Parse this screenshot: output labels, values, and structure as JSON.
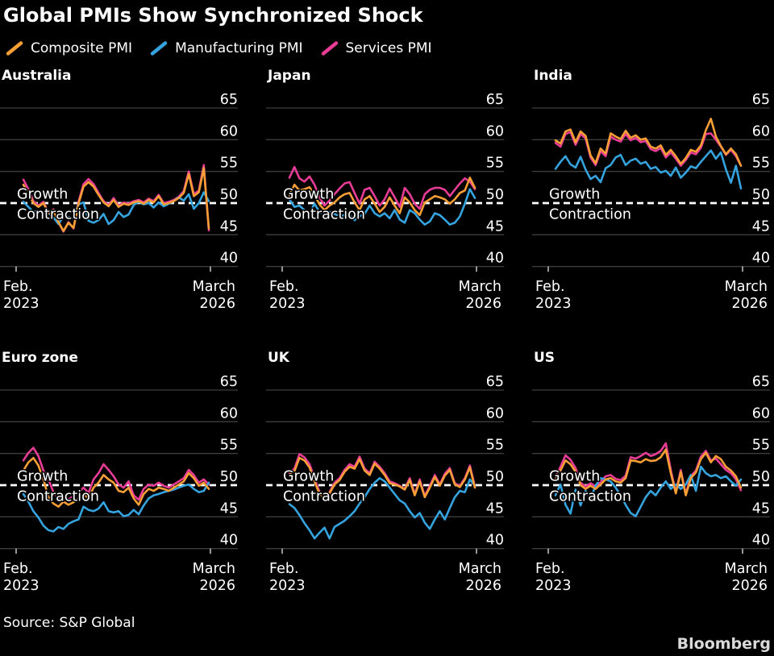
{
  "header": {
    "title": "Global PMIs Show Synchronized Shock"
  },
  "legend": [
    {
      "key": "composite",
      "label": "Composite PMI",
      "color": "#F79E35"
    },
    {
      "key": "manufacturing",
      "label": "Manufacturing PMI",
      "color": "#34A3DE"
    },
    {
      "key": "services",
      "label": "Services PMI",
      "color": "#E83C96"
    }
  ],
  "colors": {
    "background": "#000000",
    "text": "#FFFFFF",
    "gridline": "#3D3D3D",
    "tick": "#C8C8C8",
    "threshold_line": "#FFFFFF",
    "brand": "#DADADA"
  },
  "footer": {
    "source": "Source: S&P Global",
    "brand": "Bloomberg"
  },
  "chart_data": {
    "type": "line",
    "frequency": "monthly",
    "x_start": "Feb. 2023",
    "x_end": "March 2026",
    "x_tick_labels": [
      [
        "Feb.",
        "2023"
      ],
      [
        "March",
        "2026"
      ]
    ],
    "y_ticks": [
      65,
      60,
      55,
      50,
      45,
      40
    ],
    "ylim": [
      40,
      65
    ],
    "grid": true,
    "legend_position": "top-left",
    "threshold": {
      "value": 50,
      "label_above": "Growth",
      "label_below": "Contraction"
    },
    "panels": [
      {
        "title": "Australia",
        "series": {
          "composite": [
            52.9,
            51.6,
            50.0,
            49.4,
            50.0,
            48.4,
            48.9,
            47.0,
            45.6,
            46.9,
            46.1,
            49.9,
            52.6,
            53.3,
            52.6,
            51.3,
            50.1,
            49.5,
            50.5,
            49.4,
            49.9,
            49.7,
            50.1,
            50.3,
            49.9,
            50.5,
            50.1,
            51.1,
            49.8,
            50.0,
            50.3,
            50.8,
            51.6,
            54.6,
            51.1,
            51.7,
            55.5,
            46.0
          ],
          "manufacturing": [
            50.2,
            49.4,
            48.6,
            48.8,
            48.3,
            48.5,
            47.7,
            46.7,
            47.9,
            47.8,
            47.6,
            49.8,
            50.1,
            47.2,
            46.9,
            47.3,
            48.3,
            46.7,
            47.3,
            48.6,
            47.8,
            48.2,
            49.7,
            50.2,
            49.8,
            50.0,
            49.3,
            50.1,
            49.5,
            49.9,
            50.3,
            50.9,
            50.4,
            51.4,
            49.1,
            50.0,
            51.7,
            50.3
          ],
          "services": [
            53.7,
            52.2,
            50.3,
            49.6,
            50.2,
            48.5,
            49.0,
            47.0,
            45.5,
            47.0,
            46.0,
            50.2,
            53.0,
            53.8,
            53.0,
            51.6,
            50.3,
            49.7,
            50.8,
            49.6,
            50.1,
            49.9,
            50.3,
            50.5,
            50.1,
            50.7,
            50.3,
            51.3,
            50.0,
            50.2,
            50.5,
            51.0,
            51.9,
            55.0,
            51.4,
            52.0,
            56.0,
            45.7
          ]
        }
      },
      {
        "title": "Japan",
        "series": {
          "composite": [
            51.2,
            52.9,
            52.0,
            52.2,
            52.5,
            51.3,
            49.8,
            48.9,
            49.6,
            50.1,
            50.9,
            51.4,
            51.6,
            50.1,
            48.9,
            50.6,
            51.1,
            49.9,
            48.6,
            49.4,
            50.9,
            49.6,
            48.4,
            50.9,
            50.1,
            48.9,
            48.1,
            50.1,
            50.6,
            51.1,
            50.9,
            50.6,
            49.9,
            50.6,
            51.6,
            52.0,
            54.0,
            52.4
          ],
          "manufacturing": [
            50.6,
            49.4,
            49.6,
            48.9,
            48.4,
            49.9,
            48.6,
            48.3,
            48.6,
            48.3,
            47.9,
            48.1,
            48.1,
            47.3,
            47.9,
            48.3,
            49.6,
            48.4,
            47.9,
            48.4,
            47.6,
            48.9,
            47.4,
            46.9,
            48.9,
            48.4,
            47.4,
            46.6,
            47.1,
            48.4,
            48.1,
            47.4,
            46.6,
            46.9,
            47.9,
            49.9,
            52.2,
            50.8
          ],
          "services": [
            54.0,
            55.7,
            53.9,
            53.4,
            54.2,
            52.9,
            50.9,
            49.6,
            50.4,
            51.4,
            52.3,
            53.1,
            53.3,
            51.6,
            49.9,
            52.1,
            52.4,
            51.1,
            49.6,
            50.6,
            52.3,
            50.9,
            49.4,
            52.4,
            51.4,
            49.9,
            49.1,
            51.4,
            52.1,
            52.4,
            52.4,
            52.1,
            51.1,
            52.1,
            53.1,
            53.9,
            53.4,
            52.2
          ]
        }
      },
      {
        "title": "India",
        "series": {
          "composite": [
            59.9,
            59.4,
            61.3,
            61.6,
            59.6,
            61.3,
            60.6,
            57.5,
            56.3,
            58.6,
            57.8,
            61.0,
            60.5,
            60.1,
            61.4,
            60.3,
            60.7,
            60.0,
            60.2,
            58.9,
            58.6,
            59.1,
            57.6,
            58.4,
            57.4,
            56.2,
            57.1,
            58.4,
            58.1,
            59.1,
            61.5,
            63.3,
            60.5,
            59.0,
            57.7,
            58.6,
            57.7,
            55.9
          ],
          "manufacturing": [
            55.4,
            56.5,
            57.4,
            56.1,
            55.6,
            57.3,
            55.3,
            53.8,
            54.3,
            53.3,
            55.5,
            56.0,
            57.2,
            57.6,
            56.0,
            56.7,
            57.0,
            56.2,
            56.5,
            55.4,
            55.7,
            54.8,
            55.1,
            54.3,
            55.6,
            54.0,
            54.8,
            55.8,
            55.5,
            56.5,
            57.4,
            58.3,
            57.0,
            58.0,
            55.3,
            53.2,
            55.9,
            52.3
          ],
          "services": [
            59.5,
            58.9,
            60.9,
            61.2,
            59.2,
            60.9,
            60.2,
            57.2,
            56.0,
            58.2,
            57.4,
            60.5,
            60.0,
            59.7,
            60.9,
            59.9,
            60.3,
            59.6,
            59.8,
            58.5,
            58.2,
            58.7,
            57.2,
            58.0,
            57.0,
            55.9,
            56.8,
            58.0,
            57.7,
            58.7,
            60.9,
            61.0,
            60.0,
            58.9,
            57.6,
            58.4,
            57.4,
            55.9
          ]
        }
      },
      {
        "title": "Euro zone",
        "series": {
          "composite": [
            52.3,
            53.6,
            54.3,
            53.1,
            50.9,
            48.1,
            47.1,
            46.6,
            47.4,
            46.9,
            47.3,
            47.9,
            48.6,
            47.9,
            49.6,
            50.4,
            51.6,
            50.9,
            50.4,
            49.1,
            48.9,
            49.6,
            47.9,
            46.9,
            48.6,
            49.4,
            49.1,
            49.6,
            49.4,
            49.1,
            49.6,
            50.1,
            50.6,
            51.9,
            51.1,
            49.9,
            50.4,
            49.4
          ],
          "manufacturing": [
            48.6,
            47.4,
            45.9,
            44.9,
            43.6,
            42.9,
            42.7,
            43.4,
            43.1,
            43.9,
            44.3,
            44.6,
            46.6,
            46.1,
            45.9,
            46.3,
            47.3,
            45.9,
            45.7,
            45.9,
            45.1,
            45.3,
            46.1,
            45.4,
            46.8,
            47.9,
            48.4,
            48.6,
            48.9,
            49.1,
            49.3,
            49.6,
            49.9,
            50.1,
            49.4,
            48.9,
            49.1,
            50.4
          ],
          "services": [
            53.9,
            55.1,
            55.9,
            54.6,
            52.3,
            50.9,
            48.9,
            47.9,
            48.4,
            47.7,
            48.3,
            48.9,
            49.6,
            48.8,
            50.9,
            51.9,
            53.3,
            52.4,
            51.4,
            50.1,
            49.6,
            50.6,
            48.4,
            47.7,
            49.4,
            50.1,
            49.9,
            50.4,
            49.9,
            49.6,
            50.1,
            50.6,
            51.1,
            52.4,
            51.6,
            50.4,
            50.9,
            50.1
          ]
        }
      },
      {
        "title": "UK",
        "series": {
          "composite": [
            51.6,
            52.2,
            54.3,
            53.9,
            52.8,
            50.6,
            48.6,
            48.1,
            48.7,
            50.1,
            50.8,
            52.1,
            52.9,
            52.6,
            54.1,
            52.3,
            51.6,
            53.4,
            52.6,
            51.6,
            50.3,
            50.1,
            49.8,
            49.3,
            50.8,
            48.4,
            50.6,
            48.1,
            49.6,
            51.3,
            49.9,
            51.5,
            52.4,
            50.1,
            49.7,
            50.9,
            52.8,
            49.6
          ],
          "manufacturing": [
            47.0,
            46.4,
            45.3,
            44.0,
            42.9,
            41.6,
            42.5,
            43.3,
            41.6,
            43.4,
            43.9,
            44.4,
            45.1,
            45.9,
            47.1,
            48.1,
            49.4,
            50.4,
            51.1,
            50.6,
            49.6,
            48.6,
            47.6,
            47.1,
            45.9,
            44.9,
            45.6,
            44.1,
            43.1,
            44.6,
            45.9,
            44.6,
            46.4,
            48.1,
            49.1,
            48.9,
            50.9,
            49.9
          ],
          "services": [
            51.9,
            52.6,
            54.9,
            54.4,
            53.3,
            51.1,
            48.9,
            48.4,
            48.9,
            50.4,
            51.1,
            52.4,
            53.3,
            52.9,
            54.5,
            52.6,
            51.9,
            53.7,
            52.9,
            51.9,
            50.6,
            50.3,
            49.9,
            49.4,
            51.1,
            48.6,
            50.9,
            48.3,
            49.9,
            51.6,
            50.1,
            51.8,
            52.7,
            50.3,
            49.9,
            51.1,
            53.1,
            49.8
          ]
        }
      },
      {
        "title": "US",
        "series": {
          "composite": [
            50.9,
            52.3,
            53.9,
            53.3,
            52.1,
            50.0,
            49.4,
            49.9,
            49.4,
            50.1,
            50.9,
            51.1,
            50.6,
            50.4,
            51.1,
            53.9,
            53.8,
            53.6,
            54.1,
            53.8,
            53.9,
            54.4,
            55.6,
            51.9,
            48.7,
            52.1,
            48.4,
            51.1,
            52.0,
            54.1,
            55.1,
            53.6,
            54.6,
            54.1,
            52.9,
            52.3,
            51.4,
            49.6
          ],
          "manufacturing": [
            48.4,
            50.1,
            46.9,
            45.5,
            49.3,
            46.8,
            49.1,
            47.9,
            49.9,
            51.1,
            50.9,
            50.6,
            49.6,
            48.4,
            46.9,
            45.6,
            45.1,
            46.6,
            48.1,
            49.1,
            48.4,
            49.6,
            50.6,
            49.4,
            50.1,
            49.4,
            50.1,
            51.6,
            49.1,
            52.9,
            51.9,
            51.4,
            51.6,
            51.1,
            51.4,
            50.6,
            49.9,
            50.9
          ],
          "services": [
            51.3,
            52.9,
            54.7,
            54.0,
            52.7,
            50.4,
            49.8,
            50.3,
            49.8,
            50.5,
            51.4,
            51.6,
            51.0,
            50.8,
            51.5,
            54.4,
            54.2,
            54.6,
            55.1,
            54.6,
            54.9,
            55.4,
            56.6,
            52.4,
            48.9,
            52.4,
            48.6,
            51.4,
            52.3,
            54.5,
            55.4,
            53.9,
            54.2,
            53.3,
            52.4,
            51.9,
            50.9,
            49.2
          ]
        }
      }
    ]
  }
}
